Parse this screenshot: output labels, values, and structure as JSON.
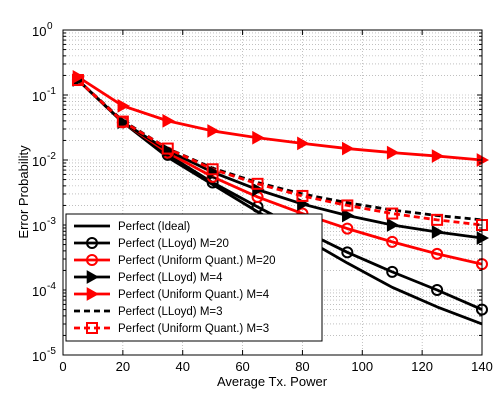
{
  "chart_data": {
    "type": "line",
    "title": "",
    "xlabel": "Average Tx. Power",
    "ylabel": "Error Probability",
    "xlim": [
      0,
      140
    ],
    "ylim": [
      1e-05,
      1
    ],
    "yscale": "log",
    "grid": true,
    "legend_position": "bottom-left",
    "xticks": [
      0,
      20,
      40,
      60,
      80,
      100,
      120,
      140
    ],
    "xtick_labels": [
      "0",
      "20",
      "40",
      "60",
      "80",
      "100",
      "120",
      "140"
    ],
    "yticks": [
      1e-05,
      0.0001,
      0.001,
      0.01,
      0.1,
      1
    ],
    "ytick_labels": [
      {
        "base": "10",
        "exp": "-5"
      },
      {
        "base": "10",
        "exp": "-4"
      },
      {
        "base": "10",
        "exp": "-3"
      },
      {
        "base": "10",
        "exp": "-2"
      },
      {
        "base": "10",
        "exp": "-1"
      },
      {
        "base": "10",
        "exp": "0"
      }
    ],
    "series": [
      {
        "name": "Perfect (Ideal)",
        "color": "#000000",
        "dash": "solid",
        "marker": "none",
        "x": [
          5,
          20,
          35,
          50,
          65,
          80,
          95,
          110,
          125,
          140
        ],
        "y": [
          0.17,
          0.038,
          0.011,
          0.0042,
          0.0016,
          0.00065,
          0.00026,
          0.00011,
          5.5e-05,
          3e-05
        ]
      },
      {
        "name": "Perfect (LLoyd) M=20",
        "color": "#000000",
        "dash": "solid",
        "marker": "circle",
        "x": [
          5,
          20,
          35,
          50,
          65,
          80,
          95,
          110,
          125,
          140
        ],
        "y": [
          0.17,
          0.038,
          0.012,
          0.0045,
          0.0019,
          0.00083,
          0.00038,
          0.00019,
          0.0001,
          5e-05
        ]
      },
      {
        "name": "Perfect (Uniform Quant.) M=20",
        "color": "#ff0000",
        "dash": "solid",
        "marker": "circle",
        "x": [
          5,
          20,
          35,
          50,
          65,
          80,
          95,
          110,
          125,
          140
        ],
        "y": [
          0.17,
          0.038,
          0.013,
          0.0055,
          0.0027,
          0.0015,
          0.00088,
          0.00055,
          0.00036,
          0.00025
        ]
      },
      {
        "name": "Perfect (LLoyd) M=4",
        "color": "#000000",
        "dash": "solid",
        "marker": "triangle-right",
        "x": [
          5,
          20,
          35,
          50,
          65,
          80,
          95,
          110,
          125,
          140
        ],
        "y": [
          0.17,
          0.038,
          0.014,
          0.0065,
          0.0035,
          0.0021,
          0.0014,
          0.001,
          0.00078,
          0.00063
        ]
      },
      {
        "name": "Perfect (Uniform Quant.) M=4",
        "color": "#ff0000",
        "dash": "solid",
        "marker": "triangle-right",
        "x": [
          5,
          20,
          35,
          50,
          65,
          80,
          95,
          110,
          125,
          140
        ],
        "y": [
          0.19,
          0.068,
          0.04,
          0.028,
          0.022,
          0.018,
          0.015,
          0.013,
          0.0115,
          0.01
        ]
      },
      {
        "name": "Perfect (LLoyd) M=3",
        "color": "#000000",
        "dash": "dashed",
        "marker": "none",
        "x": [
          5,
          20,
          35,
          50,
          65,
          80,
          95,
          110,
          125,
          140
        ],
        "y": [
          0.17,
          0.04,
          0.015,
          0.0075,
          0.0045,
          0.003,
          0.0022,
          0.0017,
          0.0014,
          0.0012
        ]
      },
      {
        "name": "Perfect (Uniform Quant.) M=3",
        "color": "#ff0000",
        "dash": "dashed",
        "marker": "square",
        "x": [
          5,
          20,
          35,
          50,
          65,
          80,
          95,
          110,
          125,
          140
        ],
        "y": [
          0.17,
          0.039,
          0.015,
          0.0072,
          0.0043,
          0.0028,
          0.002,
          0.0015,
          0.0012,
          0.001
        ]
      }
    ]
  }
}
